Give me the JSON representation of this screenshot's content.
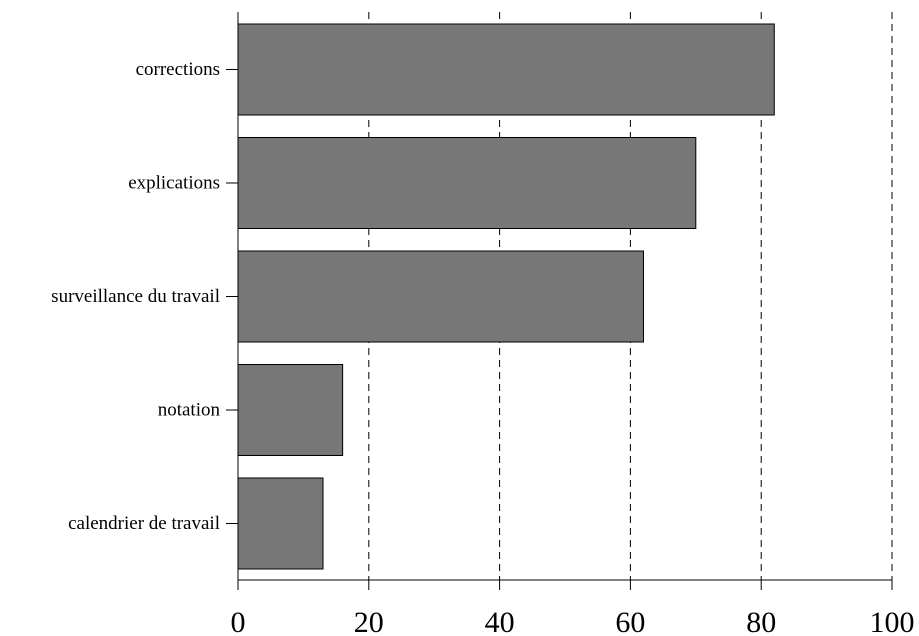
{
  "chart_data": {
    "type": "bar",
    "orientation": "horizontal",
    "categories": [
      "corrections",
      "explications",
      "surveillance du travail",
      "notation",
      "calendrier de travail"
    ],
    "values": [
      82,
      70,
      62,
      16,
      13
    ],
    "title": "",
    "xlabel": "",
    "ylabel": "",
    "xlim": [
      0,
      100
    ],
    "x_ticks": [
      0,
      20,
      40,
      60,
      80,
      100
    ],
    "grid": "vertical dashed",
    "legend": "none",
    "colors": {
      "bar": "#777777",
      "bar_outline": "#000000",
      "grid": "#000000"
    }
  }
}
